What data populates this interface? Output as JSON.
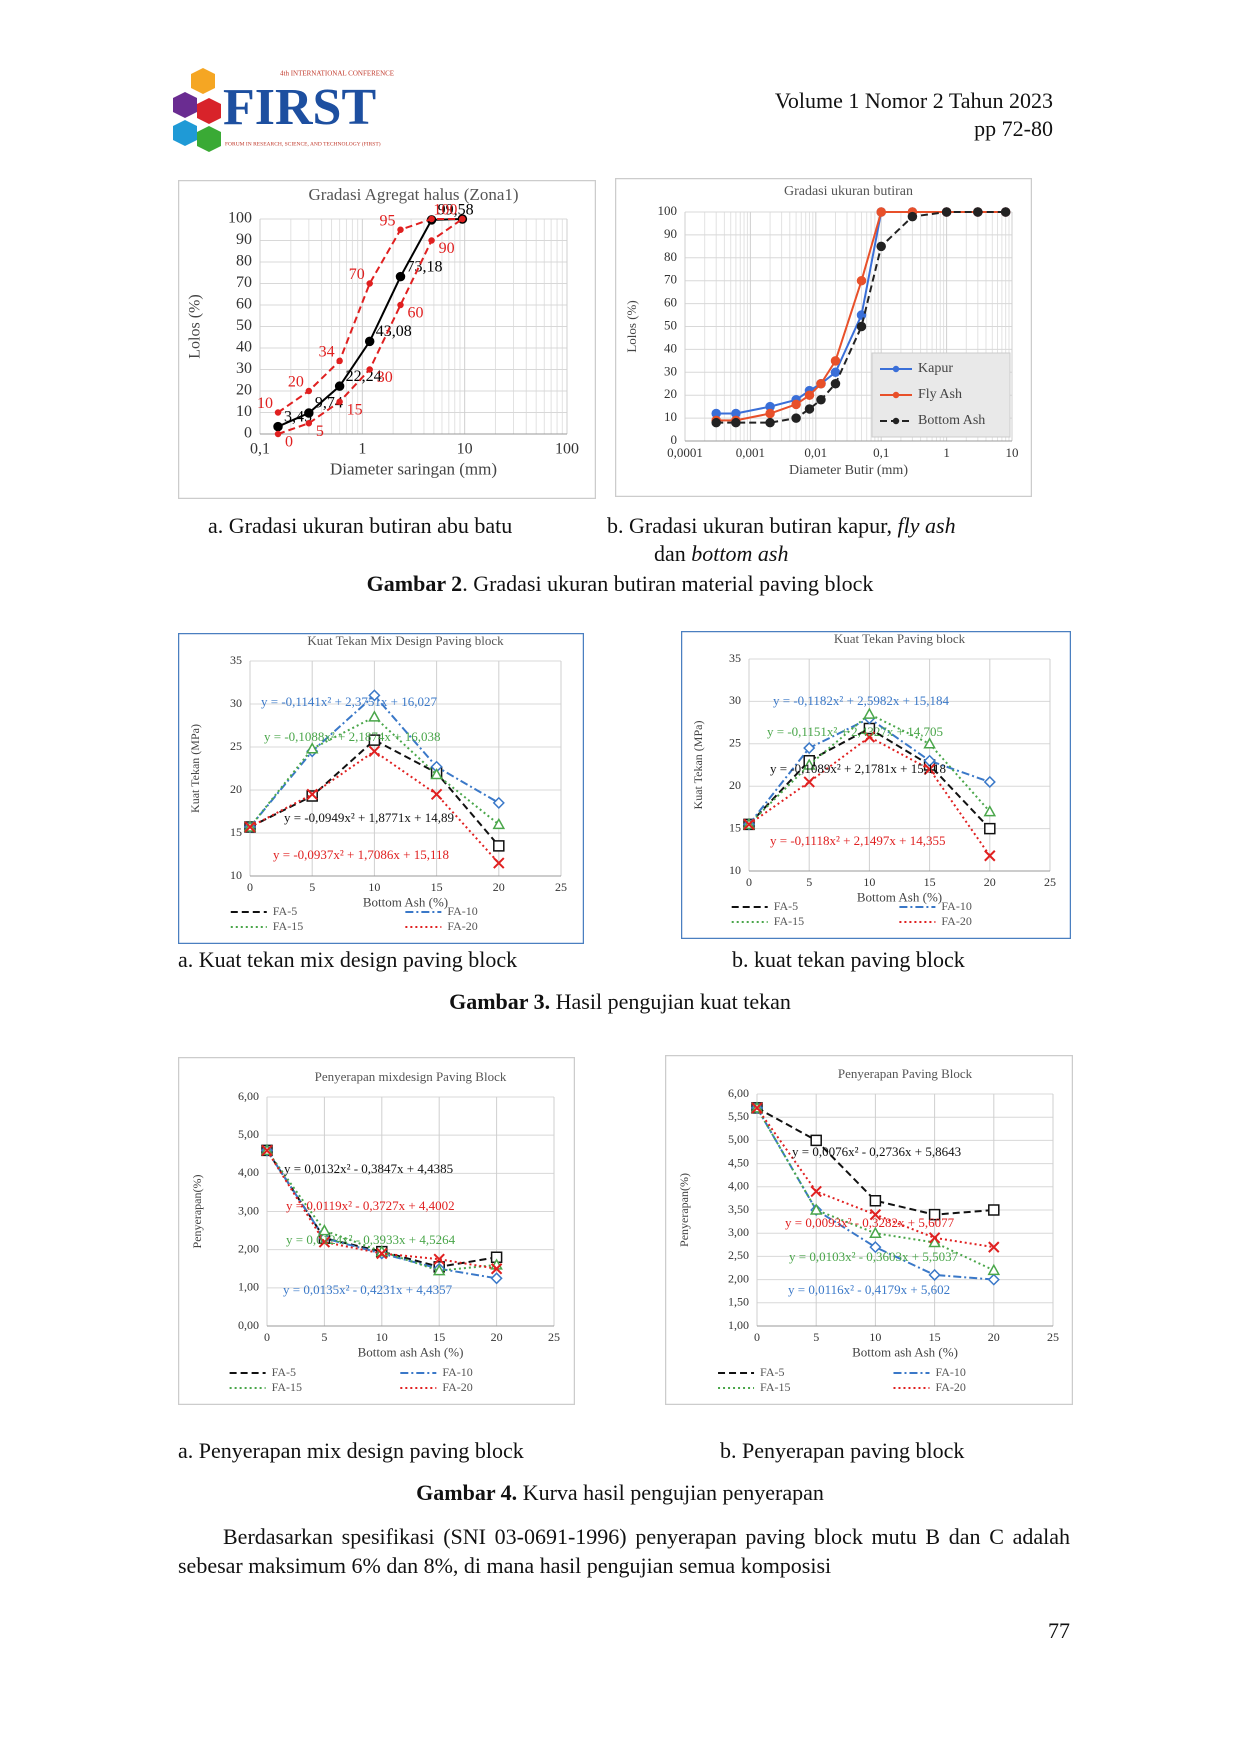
{
  "header": {
    "logo_text": "FIRST",
    "logo_top": "4th INTERNATIONAL CONFERENCE",
    "logo_bottom": "FORUM IN RESEARCH, SCIENCE, AND TECHNOLOGY (FIRST)",
    "volume": "Volume 1 Nomor 2 Tahun 2023",
    "pages": "pp 72-80"
  },
  "chart_data": [
    {
      "type": "line",
      "title": "Gradasi Agregat halus (Zona1)",
      "x_label": "Diameter saringan (mm)",
      "y_label": "Lolos (%)",
      "xscale": "log",
      "xlim": [
        0.1,
        100
      ],
      "xticks": [
        {
          "value": 0.1,
          "label": "0,1"
        },
        1,
        10,
        100
      ],
      "ylim": [
        0,
        100
      ],
      "yticks": [
        0,
        10,
        20,
        30,
        40,
        50,
        60,
        70,
        80,
        90,
        100
      ],
      "grid": true,
      "x": [
        0.15,
        0.3,
        0.6,
        1.18,
        2.36,
        4.75,
        9.5
      ],
      "series": [
        {
          "color": "#000000",
          "style": "solid",
          "marker": "circle",
          "values": [
            3.45,
            9.74,
            22.24,
            43.08,
            73.18,
            99.58,
            100
          ],
          "value_labels": [
            "3,45",
            "9,74",
            "22,24",
            "43,08",
            "73,18",
            "99,58",
            null
          ]
        },
        {
          "color": "#e02020",
          "style": "dashed",
          "marker": "dot",
          "values": [
            10,
            20,
            34,
            70,
            95,
            100,
            100
          ],
          "value_labels": [
            "10",
            "20",
            "34",
            "70",
            "95",
            null,
            "100"
          ]
        },
        {
          "color": "#e02020",
          "style": "dashed",
          "marker": "dot",
          "values": [
            0,
            5,
            15,
            30,
            60,
            90,
            100
          ],
          "value_labels": [
            "0",
            "5",
            "15",
            "30",
            "60",
            "90",
            null
          ]
        }
      ]
    },
    {
      "type": "line",
      "title": "Gradasi ukuran butiran",
      "x_label": "Diameter Butir (mm)",
      "y_label": "Lolos (%)",
      "xscale": "log",
      "xlim": [
        0.0001,
        10
      ],
      "xticks": [
        {
          "value": 0.0001,
          "label": "0,0001"
        },
        {
          "value": 0.001,
          "label": "0,001"
        },
        {
          "value": 0.01,
          "label": "0,01"
        },
        {
          "value": 0.1,
          "label": "0,1"
        },
        1,
        10
      ],
      "ylim": [
        0,
        100
      ],
      "yticks": [
        0,
        10,
        20,
        30,
        40,
        50,
        60,
        70,
        80,
        90,
        100
      ],
      "grid": true,
      "legend": "lower right",
      "x": [
        0.0003,
        0.0006,
        0.002,
        0.005,
        0.008,
        0.012,
        0.02,
        0.05,
        0.1,
        0.3,
        1,
        3,
        8
      ],
      "series": [
        {
          "name": "Kapur",
          "color": "#3a6fd8",
          "style": "solid",
          "marker": "circle",
          "values": [
            12,
            12,
            15,
            18,
            22,
            25,
            30,
            55,
            100,
            100,
            100,
            100,
            100
          ]
        },
        {
          "name": "Fly Ash",
          "color": "#e8502a",
          "style": "solid",
          "marker": "circle",
          "values": [
            9,
            9,
            12,
            16,
            20,
            25,
            35,
            70,
            100,
            100,
            100,
            100,
            100
          ]
        },
        {
          "name": "Bottom Ash",
          "color": "#222222",
          "style": "dashed",
          "marker": "circle",
          "values": [
            8,
            8,
            8,
            10,
            14,
            18,
            25,
            50,
            85,
            98,
            100,
            100,
            100
          ]
        }
      ]
    },
    {
      "type": "line",
      "title": "Kuat Tekan Mix Design Paving block",
      "x_label": "Bottom Ash (%)",
      "y_label": "Kuat Tekan (MPa)",
      "xlim": [
        0,
        25
      ],
      "xticks": [
        0,
        5,
        10,
        15,
        20,
        25
      ],
      "ylim": [
        10,
        35
      ],
      "yticks": [
        10,
        15,
        20,
        25,
        30,
        35
      ],
      "grid": true,
      "legend": "bottom",
      "x": [
        0,
        5,
        10,
        15,
        20
      ],
      "series": [
        {
          "name": "FA-5",
          "color": "#111111",
          "style": "dashed",
          "marker": "square",
          "values": [
            15.7,
            19.3,
            25.8,
            22,
            13.5
          ]
        },
        {
          "name": "FA-10",
          "color": "#3a78c8",
          "style": "dashdot",
          "marker": "diamond",
          "values": [
            15.7,
            24.5,
            31,
            22.7,
            18.5
          ]
        },
        {
          "name": "FA-15",
          "color": "#4aa64a",
          "style": "dotted",
          "marker": "triangle",
          "values": [
            15.7,
            24.8,
            28.5,
            21.8,
            16
          ]
        },
        {
          "name": "FA-20",
          "color": "#e02020",
          "style": "dotted",
          "marker": "x",
          "values": [
            15.7,
            19.5,
            24.5,
            19.5,
            11.5
          ]
        }
      ],
      "annotations": [
        {
          "text": "y = -0,1141x² + 2,3751x + 16,027",
          "color": "#3a78c8"
        },
        {
          "text": "y = -0,1088x² + 2,1874x + 16,038",
          "color": "#4aa64a"
        },
        {
          "text": "y = -0,0949x² + 1,8771x + 14,89",
          "color": "#111111"
        },
        {
          "text": "y = -0,0937x² + 1,7086x + 15,118",
          "color": "#e02020"
        }
      ]
    },
    {
      "type": "line",
      "title": "Kuat Tekan Paving block",
      "x_label": "Bottom Ash (%)",
      "y_label": "Kuat Tekan (MPa)",
      "xlim": [
        0,
        25
      ],
      "xticks": [
        0,
        5,
        10,
        15,
        20,
        25
      ],
      "ylim": [
        10,
        35
      ],
      "yticks": [
        10,
        15,
        20,
        25,
        30,
        35
      ],
      "grid": true,
      "legend": "bottom",
      "x": [
        0,
        5,
        10,
        15,
        20
      ],
      "series": [
        {
          "name": "FA-5",
          "color": "#111111",
          "style": "dashed",
          "marker": "square",
          "values": [
            15.5,
            23,
            26.8,
            22.5,
            15
          ]
        },
        {
          "name": "FA-10",
          "color": "#3a78c8",
          "style": "dashdot",
          "marker": "diamond",
          "values": [
            15.5,
            24.5,
            28,
            23,
            20.5
          ]
        },
        {
          "name": "FA-15",
          "color": "#4aa64a",
          "style": "dotted",
          "marker": "triangle",
          "values": [
            15.5,
            22.5,
            28.5,
            25,
            17
          ]
        },
        {
          "name": "FA-20",
          "color": "#e02020",
          "style": "dotted",
          "marker": "x",
          "values": [
            15.5,
            20.5,
            25.8,
            22,
            11.8
          ]
        }
      ],
      "annotations": [
        {
          "text": "y = -0,1182x² + 2,5982x + 15,184",
          "color": "#3a78c8"
        },
        {
          "text": "y = -0,1151x² + 2,4327x + 14,705",
          "color": "#4aa64a"
        },
        {
          "text": "y = -0,1089x² + 2,1781x + 15,118",
          "color": "#111111"
        },
        {
          "text": "y = -0,1118x² + 2,1497x + 14,355",
          "color": "#e02020"
        }
      ]
    },
    {
      "type": "line",
      "title": "Penyerapan  mixdesign Paving Block",
      "x_label": "Bottom ash Ash (%)",
      "y_label": "Penyerapan(%)",
      "xlim": [
        0,
        25
      ],
      "xticks": [
        0,
        5,
        10,
        15,
        20,
        25
      ],
      "ylim": [
        0,
        6
      ],
      "yticks": [
        {
          "value": 0,
          "label": "0,00"
        },
        {
          "value": 1,
          "label": "1,00"
        },
        {
          "value": 2,
          "label": "2,00"
        },
        {
          "value": 3,
          "label": "3,00"
        },
        {
          "value": 4,
          "label": "4,00"
        },
        {
          "value": 5,
          "label": "5,00"
        },
        {
          "value": 6,
          "label": "6,00"
        }
      ],
      "grid": true,
      "legend": "bottom",
      "x": [
        0,
        5,
        10,
        15,
        20
      ],
      "series": [
        {
          "name": "FA-5",
          "color": "#111111",
          "style": "dashed",
          "marker": "square",
          "values": [
            4.6,
            2.3,
            1.95,
            1.55,
            1.8
          ]
        },
        {
          "name": "FA-10",
          "color": "#3a78c8",
          "style": "dashdot",
          "marker": "diamond",
          "values": [
            4.6,
            2.3,
            1.9,
            1.5,
            1.25
          ]
        },
        {
          "name": "FA-15",
          "color": "#4aa64a",
          "style": "dotted",
          "marker": "triangle",
          "values": [
            4.6,
            2.5,
            1.95,
            1.45,
            1.6
          ]
        },
        {
          "name": "FA-20",
          "color": "#e02020",
          "style": "dotted",
          "marker": "x",
          "values": [
            4.6,
            2.2,
            1.9,
            1.75,
            1.5
          ]
        }
      ],
      "annotations": [
        {
          "text": "y = 0,0132x² - 0,3847x + 4,4385",
          "color": "#111111"
        },
        {
          "text": "y = 0,0119x² - 0,3727x + 4,4002",
          "color": "#e02020"
        },
        {
          "text": "y = 0,0124x² - 0,3933x + 4,5264",
          "color": "#4aa64a"
        },
        {
          "text": "y = 0,0135x² - 0,4231x + 4,4357",
          "color": "#3a78c8"
        }
      ]
    },
    {
      "type": "line",
      "title": "Penyerapan Paving Block",
      "x_label": "Bottom ash Ash (%)",
      "y_label": "Penyerapan(%)",
      "xlim": [
        0,
        25
      ],
      "xticks": [
        0,
        5,
        10,
        15,
        20,
        25
      ],
      "ylim": [
        1,
        6
      ],
      "yticks": [
        {
          "value": 1,
          "label": "1,00"
        },
        {
          "value": 1.5,
          "label": "1,50"
        },
        {
          "value": 2,
          "label": "2,00"
        },
        {
          "value": 2.5,
          "label": "2,50"
        },
        {
          "value": 3,
          "label": "3,00"
        },
        {
          "value": 3.5,
          "label": "3,50"
        },
        {
          "value": 4,
          "label": "4,00"
        },
        {
          "value": 4.5,
          "label": "4,50"
        },
        {
          "value": 5,
          "label": "5,00"
        },
        {
          "value": 5.5,
          "label": "5,50"
        },
        {
          "value": 6,
          "label": "6,00"
        }
      ],
      "grid": true,
      "legend": "bottom",
      "x": [
        0,
        5,
        10,
        15,
        20
      ],
      "series": [
        {
          "name": "FA-5",
          "color": "#111111",
          "style": "dashed",
          "marker": "square",
          "values": [
            5.7,
            5.0,
            3.7,
            3.4,
            3.5
          ]
        },
        {
          "name": "FA-10",
          "color": "#3a78c8",
          "style": "dashdot",
          "marker": "diamond",
          "values": [
            5.7,
            3.5,
            2.7,
            2.1,
            2.0
          ]
        },
        {
          "name": "FA-15",
          "color": "#4aa64a",
          "style": "dotted",
          "marker": "triangle",
          "values": [
            5.7,
            3.5,
            3.0,
            2.8,
            2.2
          ]
        },
        {
          "name": "FA-20",
          "color": "#e02020",
          "style": "dotted",
          "marker": "x",
          "values": [
            5.7,
            3.9,
            3.4,
            2.9,
            2.7
          ]
        }
      ],
      "annotations": [
        {
          "text": "y = 0,0076x² - 0,2736x + 5,8643",
          "color": "#111111"
        },
        {
          "text": "y = 0,0093x² - 0,3282x + 5,6077",
          "color": "#e02020"
        },
        {
          "text": "y = 0,0103x² - 0,3603x + 5,5037",
          "color": "#4aa64a"
        },
        {
          "text": "y = 0,0116x² - 0,4179x + 5,602",
          "color": "#3a78c8"
        }
      ]
    }
  ],
  "figure2": {
    "caption_a": "a.  Gradasi ukuran butiran abu batu",
    "caption_b_1": "b.  Gradasi ukuran butiran kapur,",
    "caption_b_italic_1": "fly ash",
    "caption_b_2": "dan",
    "caption_b_italic_2": "bottom ash",
    "label": "Gambar 2",
    "title": ". Gradasi ukuran butiran material paving block"
  },
  "figure3": {
    "caption_a": "a.  Kuat tekan mix design paving block",
    "caption_b": "b. kuat tekan paving block",
    "label": "Gambar 3.",
    "title": "Hasil pengujian kuat tekan"
  },
  "figure4": {
    "caption_a": "a.  Penyerapan mix design paving block",
    "caption_b": "b. Penyerapan paving block",
    "label": "Gambar 4.",
    "title": "Kurva hasil pengujian penyerapan"
  },
  "body": {
    "paragraph": "Berdasarkan spesifikasi (SNI 03-0691-1996) penyerapan paving block mutu B dan C adalah sebesar maksimum 6% dan 8%, di mana hasil pengujian semua komposisi"
  },
  "page_number": "77"
}
